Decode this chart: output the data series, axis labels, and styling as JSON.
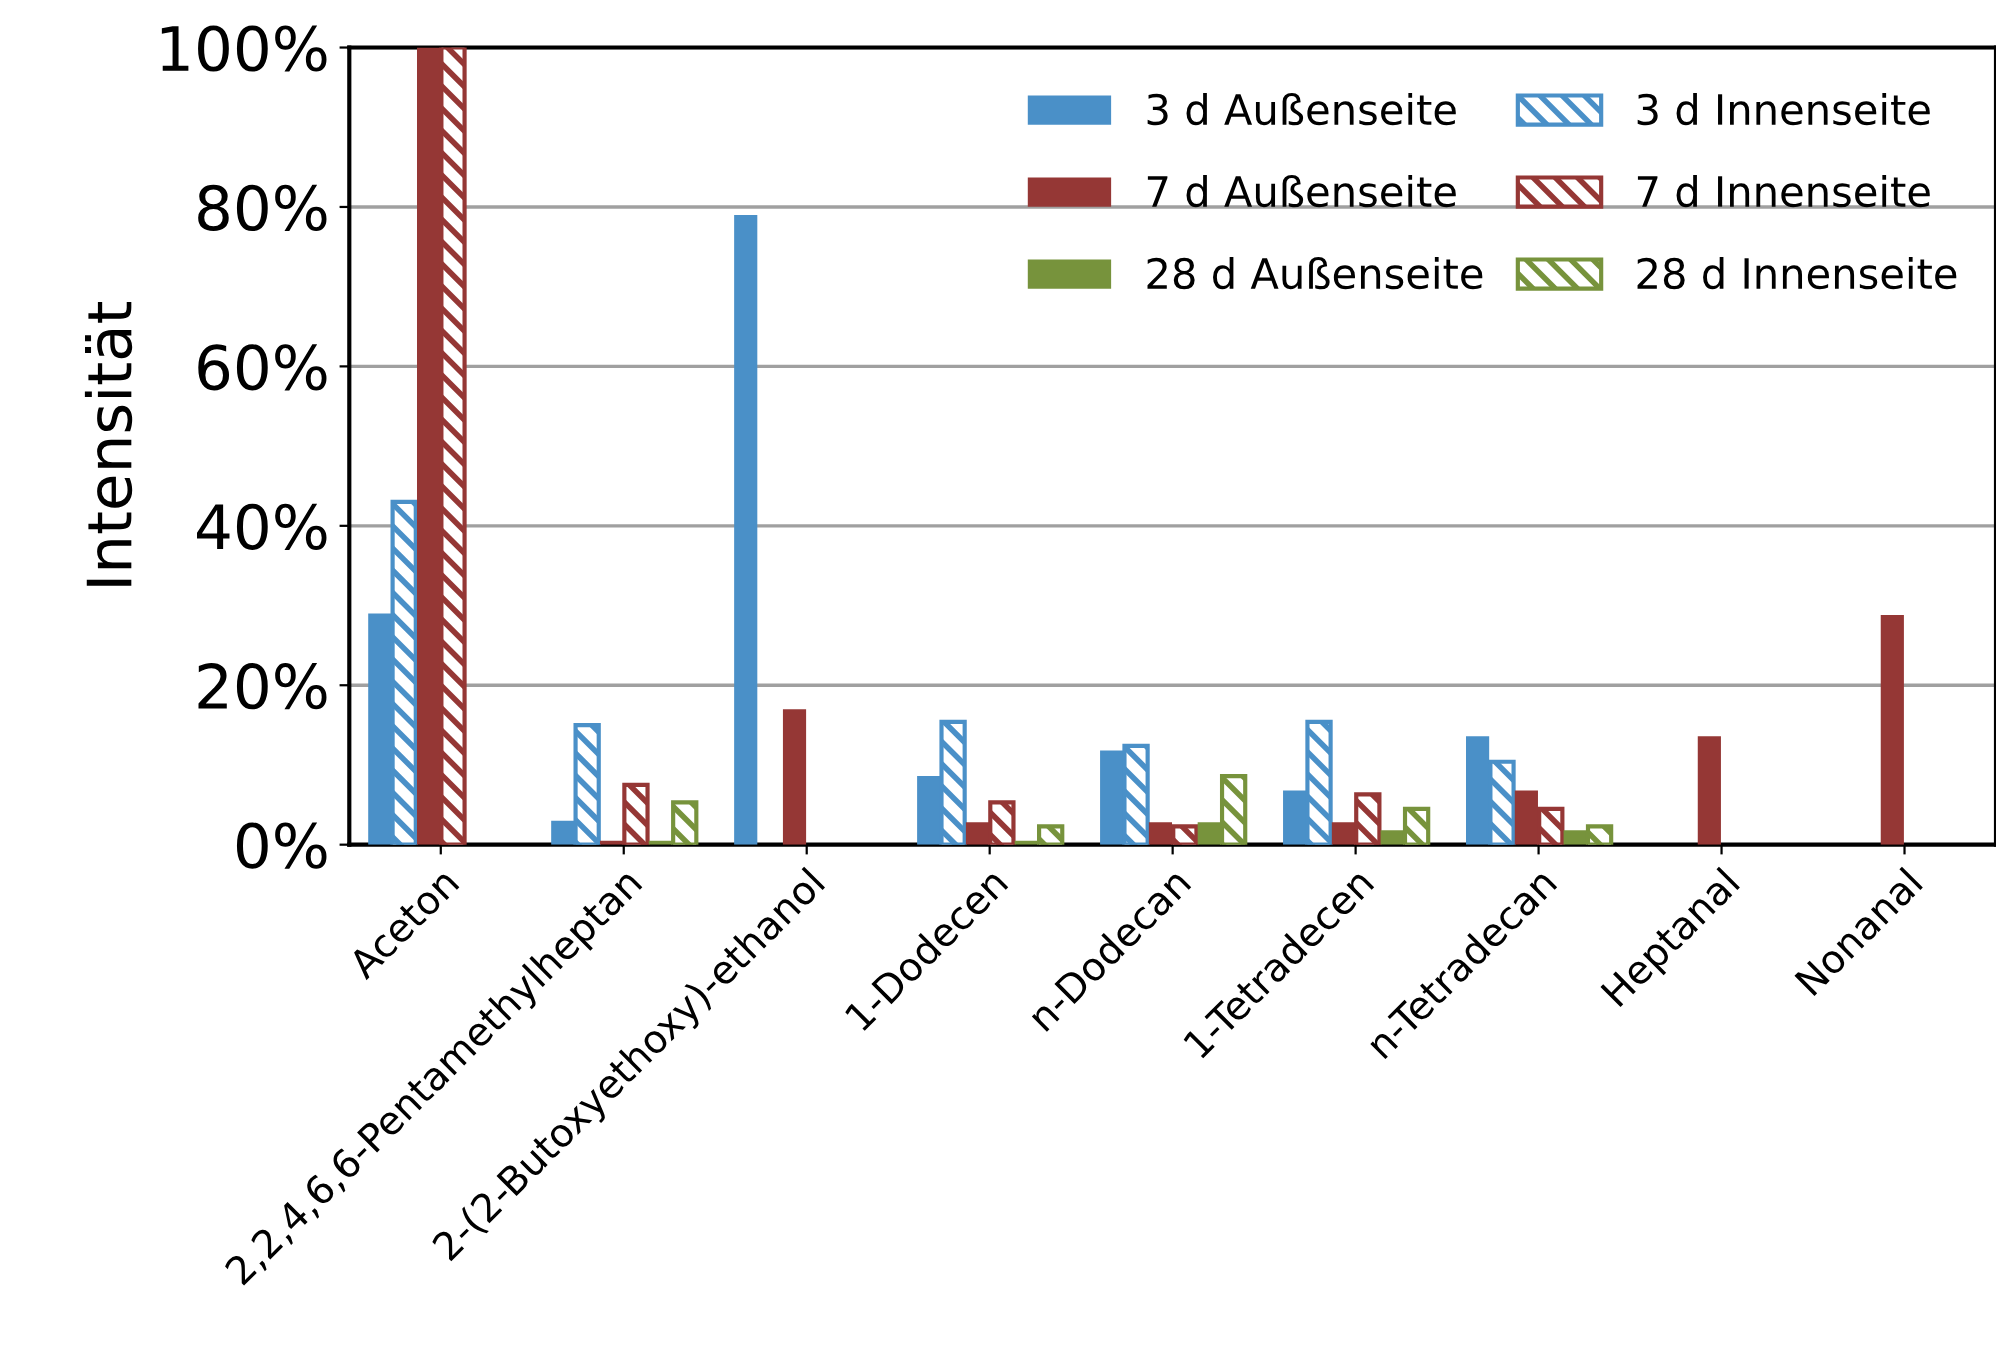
{
  "chart_data": {
    "type": "bar",
    "ylabel": "Intensität",
    "categories": [
      "Aceton",
      "2,2,4,6,6-Pentamethylheptan",
      "2-(2-Butoxyethoxy)-ethanol",
      "1-Dodecen",
      "n-Dodecan",
      "1-Tetradecen",
      "n-Tetradecan",
      "Heptanal",
      "Nonanal"
    ],
    "series": [
      {
        "name": "3 d Außenseite",
        "color": "#4a90c8",
        "values": [
          29,
          3,
          79,
          8.6,
          11.8,
          6.8,
          13.6,
          null,
          null
        ]
      },
      {
        "name": "3 d Innenseite",
        "color": "#4a90c8",
        "values": [
          43,
          15,
          null,
          15.4,
          12.4,
          15.4,
          10.4,
          null,
          null
        ]
      },
      {
        "name": "7 d Außenseite",
        "color": "#953735",
        "values": [
          100,
          0.5,
          17,
          2.8,
          2.8,
          2.8,
          6.8,
          13.6,
          28.8
        ]
      },
      {
        "name": "7 d Innenseite",
        "color": "#953735",
        "values": [
          100,
          7.5,
          null,
          5.3,
          2.3,
          6.3,
          4.5,
          null,
          null
        ]
      },
      {
        "name": "28 d Außenseite",
        "color": "#77933c",
        "values": [
          null,
          0.5,
          null,
          0.5,
          2.8,
          1.8,
          1.8,
          null,
          null
        ]
      },
      {
        "name": "28 d Innenseite",
        "color": "#77933c",
        "values": [
          null,
          5.3,
          null,
          2.3,
          8.6,
          4.5,
          2.3,
          null,
          null
        ]
      }
    ],
    "ylim": [
      0,
      100
    ],
    "yticks": [
      {
        "value": 0,
        "label": "0%"
      },
      {
        "value": 20,
        "label": "20%"
      },
      {
        "value": 40,
        "label": "40%"
      },
      {
        "value": 60,
        "label": "60%"
      },
      {
        "value": 80,
        "label": "80%"
      },
      {
        "value": 100,
        "label": "100%"
      }
    ],
    "grid": "y",
    "legend": "top right"
  }
}
